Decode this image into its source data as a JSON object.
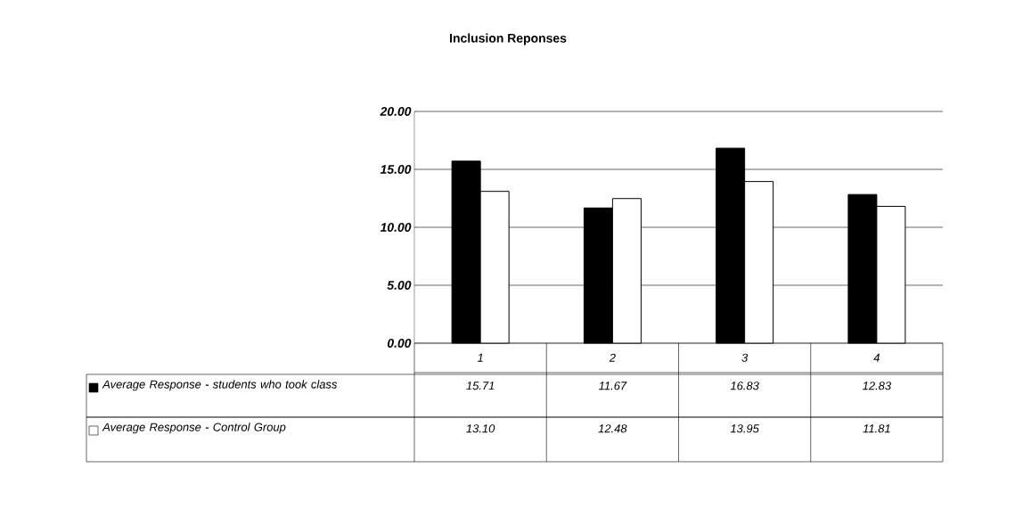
{
  "chart_data": {
    "type": "bar",
    "title": "Inclusion Reponses",
    "categories": [
      "1",
      "2",
      "3",
      "4"
    ],
    "series": [
      {
        "name": "Average Response - students who took class",
        "color": "#000000",
        "values": [
          15.71,
          11.67,
          16.83,
          12.83
        ],
        "value_labels": [
          "15.71",
          "11.67",
          "16.83",
          "12.83"
        ]
      },
      {
        "name": "Average Response - Control Group",
        "color": "#ffffff",
        "values": [
          13.1,
          12.48,
          13.95,
          11.81
        ],
        "value_labels": [
          "13.10",
          "12.48",
          "13.95",
          "11.81"
        ]
      }
    ],
    "ylim": [
      0,
      20
    ],
    "yticks": [
      {
        "value": 0,
        "label": "0.00"
      },
      {
        "value": 5,
        "label": "5.00"
      },
      {
        "value": 10,
        "label": "10.00"
      },
      {
        "value": 15,
        "label": "15.00"
      },
      {
        "value": 20,
        "label": "20.00"
      }
    ],
    "grid": "y",
    "legend": "bottom left"
  }
}
